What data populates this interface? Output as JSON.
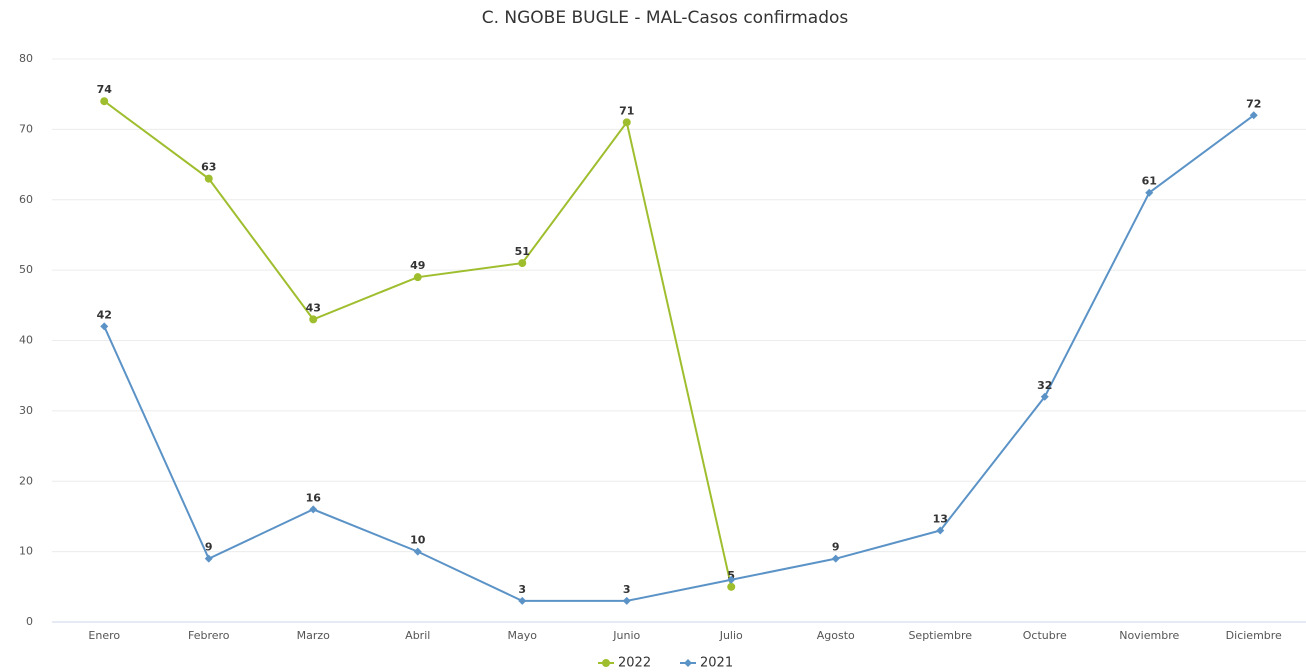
{
  "chart_data": {
    "type": "line",
    "title": "C. NGOBE BUGLE - MAL-Casos confirmados",
    "categories": [
      "Enero",
      "Febrero",
      "Marzo",
      "Abril",
      "Mayo",
      "Junio",
      "Julio",
      "Agosto",
      "Septiembre",
      "Octubre",
      "Noviembre",
      "Diciembre"
    ],
    "series": [
      {
        "name": "2022",
        "color": "#9fbe2e",
        "marker": "circle",
        "values": [
          74,
          63,
          43,
          49,
          51,
          71,
          5,
          null,
          null,
          null,
          null,
          null
        ]
      },
      {
        "name": "2021",
        "color": "#5b93c7",
        "marker": "diamond",
        "values": [
          42,
          9,
          16,
          10,
          3,
          3,
          6,
          9,
          13,
          32,
          61,
          72
        ],
        "value_labels": [
          "42",
          "9",
          "16",
          "10",
          "3",
          "3",
          null,
          "9",
          "13",
          "32",
          "61",
          "72"
        ]
      }
    ],
    "ylim": [
      0,
      80
    ],
    "yticks": [
      0,
      10,
      20,
      30,
      40,
      50,
      60,
      70,
      80
    ],
    "grid": true,
    "legend": "bottom"
  }
}
